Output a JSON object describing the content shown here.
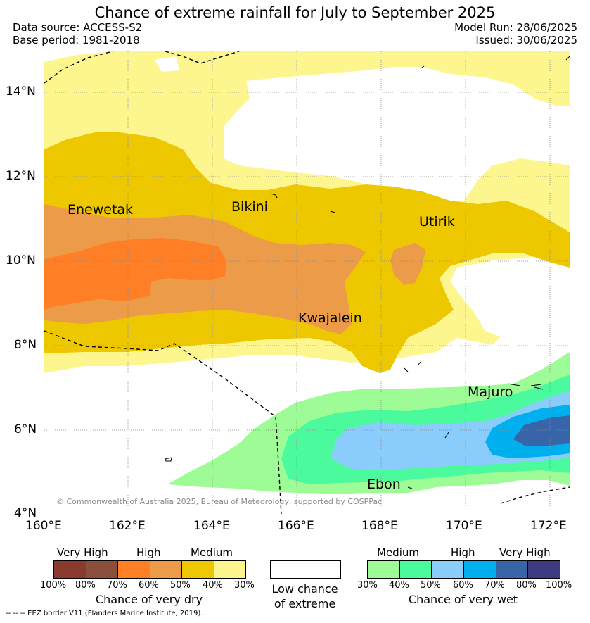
{
  "title": "Chance of extreme rainfall for July to September 2025",
  "header": {
    "data_source": "Data source: ACCESS-S2",
    "base_period": "Base period: 1981-2018",
    "model_run": "Model Run: 28/06/2025",
    "issued": "Issued: 30/06/2025"
  },
  "map": {
    "lon_ticks": [
      "160°E",
      "162°E",
      "164°E",
      "166°E",
      "168°E",
      "170°E",
      "172°E"
    ],
    "lat_ticks": [
      "4°N",
      "6°N",
      "8°N",
      "10°N",
      "12°N",
      "14°N"
    ],
    "places": {
      "enewetak": "Enewetak",
      "bikini": "Bikini",
      "utirik": "Utirik",
      "kwajalein": "Kwajalein",
      "majuro": "Majuro",
      "ebon": "Ebon"
    },
    "copyright": "© Commonwealth of Australia 2025, Bureau of Meteorology, supported by COSPPac"
  },
  "legend": {
    "dry": {
      "groups": [
        "Very High",
        "High",
        "Medium"
      ],
      "ticks": [
        "100%",
        "80%",
        "70%",
        "60%",
        "50%",
        "40%",
        "30%"
      ],
      "colors": [
        "#8b3a2f",
        "#8b4f3e",
        "#ff7f27",
        "#ec9b49",
        "#edc700",
        "#fdf68f"
      ],
      "title": "Chance of very dry"
    },
    "neutral": {
      "line1": "Low chance",
      "line2": "of extreme"
    },
    "wet": {
      "groups": [
        "Medium",
        "High",
        "Very High"
      ],
      "ticks": [
        "30%",
        "40%",
        "50%",
        "60%",
        "70%",
        "80%",
        "100%"
      ],
      "colors": [
        "#9efc97",
        "#4cfa9e",
        "#8accfc",
        "#00b0ee",
        "#3864a8",
        "#3d3b80"
      ],
      "title": "Chance of very wet"
    },
    "footnote": "-- -- -- EEZ border V11 (Flanders Marine Institute, 2019)."
  }
}
